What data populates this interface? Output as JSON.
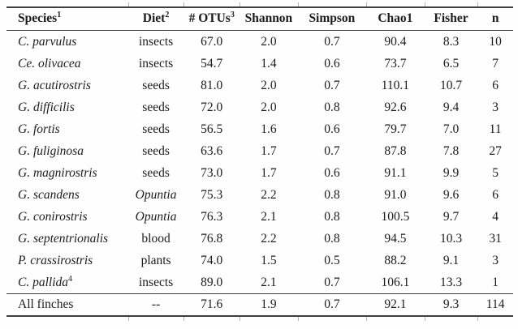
{
  "table": {
    "columns": [
      {
        "key": "species",
        "label": "Species",
        "sup": "1"
      },
      {
        "key": "diet",
        "label": "Diet",
        "sup": "2"
      },
      {
        "key": "otus",
        "label": "# OTUs",
        "sup": "3"
      },
      {
        "key": "shannon",
        "label": "Shannon",
        "sup": ""
      },
      {
        "key": "simpson",
        "label": "Simpson",
        "sup": ""
      },
      {
        "key": "chao1",
        "label": "Chao1",
        "sup": ""
      },
      {
        "key": "fisher",
        "label": "Fisher",
        "sup": ""
      },
      {
        "key": "n",
        "label": "n",
        "sup": ""
      }
    ],
    "rows": [
      {
        "species": "C. parvulus",
        "species_sup": "",
        "species_italic": true,
        "diet": "insects",
        "diet_italic": false,
        "otus": "67.0",
        "shannon": "2.0",
        "simpson": "0.7",
        "chao1": "90.4",
        "fisher": "8.3",
        "n": "10"
      },
      {
        "species": "Ce. olivacea",
        "species_sup": "",
        "species_italic": true,
        "diet": "insects",
        "diet_italic": false,
        "otus": "54.7",
        "shannon": "1.4",
        "simpson": "0.6",
        "chao1": "73.7",
        "fisher": "6.5",
        "n": "7"
      },
      {
        "species": "G. acutirostris",
        "species_sup": "",
        "species_italic": true,
        "diet": "seeds",
        "diet_italic": false,
        "otus": "81.0",
        "shannon": "2.0",
        "simpson": "0.7",
        "chao1": "110.1",
        "fisher": "10.7",
        "n": "6"
      },
      {
        "species": "G. difficilis",
        "species_sup": "",
        "species_italic": true,
        "diet": "seeds",
        "diet_italic": false,
        "otus": "72.0",
        "shannon": "2.0",
        "simpson": "0.8",
        "chao1": "92.6",
        "fisher": "9.4",
        "n": "3"
      },
      {
        "species": "G. fortis",
        "species_sup": "",
        "species_italic": true,
        "diet": "seeds",
        "diet_italic": false,
        "otus": "56.5",
        "shannon": "1.6",
        "simpson": "0.6",
        "chao1": "79.7",
        "fisher": "7.0",
        "n": "11"
      },
      {
        "species": "G. fuliginosa",
        "species_sup": "",
        "species_italic": true,
        "diet": "seeds",
        "diet_italic": false,
        "otus": "63.6",
        "shannon": "1.7",
        "simpson": "0.7",
        "chao1": "87.8",
        "fisher": "7.8",
        "n": "27"
      },
      {
        "species": "G. magnirostris",
        "species_sup": "",
        "species_italic": true,
        "diet": "seeds",
        "diet_italic": false,
        "otus": "73.0",
        "shannon": "1.7",
        "simpson": "0.6",
        "chao1": "91.1",
        "fisher": "9.9",
        "n": "5"
      },
      {
        "species": "G. scandens",
        "species_sup": "",
        "species_italic": true,
        "diet": "Opuntia",
        "diet_italic": true,
        "otus": "75.3",
        "shannon": "2.2",
        "simpson": "0.8",
        "chao1": "91.0",
        "fisher": "9.6",
        "n": "6"
      },
      {
        "species": "G. conirostris",
        "species_sup": "",
        "species_italic": true,
        "diet": "Opuntia",
        "diet_italic": true,
        "otus": "76.3",
        "shannon": "2.1",
        "simpson": "0.8",
        "chao1": "100.5",
        "fisher": "9.7",
        "n": "4"
      },
      {
        "species": "G. septentrionalis",
        "species_sup": "",
        "species_italic": true,
        "diet": "blood",
        "diet_italic": false,
        "otus": "76.8",
        "shannon": "2.2",
        "simpson": "0.8",
        "chao1": "94.5",
        "fisher": "10.3",
        "n": "31"
      },
      {
        "species": "P. crassirostris",
        "species_sup": "",
        "species_italic": true,
        "diet": "plants",
        "diet_italic": false,
        "otus": "74.0",
        "shannon": "1.5",
        "simpson": "0.5",
        "chao1": "88.2",
        "fisher": "9.1",
        "n": "3"
      },
      {
        "species": "C. pallida",
        "species_sup": "4",
        "species_italic": true,
        "diet": "insects",
        "diet_italic": false,
        "otus": "89.0",
        "shannon": "2.1",
        "simpson": "0.7",
        "chao1": "106.1",
        "fisher": "13.3",
        "n": "1"
      }
    ],
    "summary_row": {
      "species": "All finches",
      "species_sup": "",
      "species_italic": false,
      "diet": "--",
      "diet_italic": false,
      "otus": "71.6",
      "shannon": "1.9",
      "simpson": "0.7",
      "chao1": "92.1",
      "fisher": "9.3",
      "n": "114"
    }
  },
  "colors": {
    "background": "#fefefe",
    "text": "#1c1c1c",
    "rule": "#3d3d3d",
    "tick": "#b5b5b5"
  }
}
